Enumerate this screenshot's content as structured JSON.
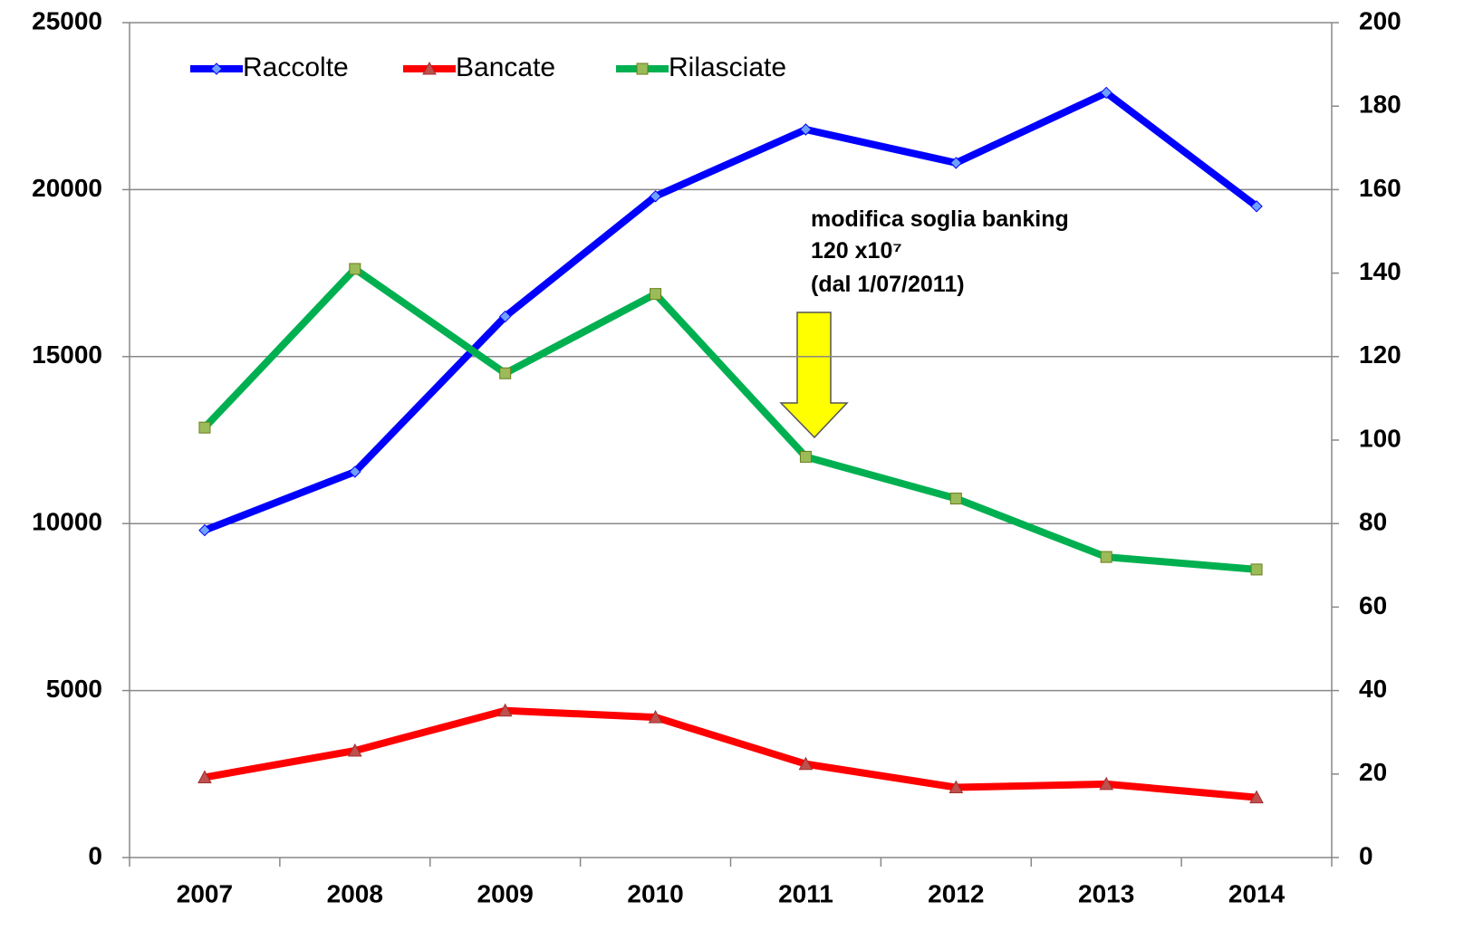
{
  "chart_data": {
    "type": "line",
    "categories": [
      "2007",
      "2008",
      "2009",
      "2010",
      "2011",
      "2012",
      "2013",
      "2014"
    ],
    "series": [
      {
        "name": "Raccolte",
        "color": "#0000ff",
        "marker": "diamond",
        "values": [
          9800,
          11550,
          16200,
          19800,
          21800,
          20800,
          22900,
          19500
        ]
      },
      {
        "name": "Bancate",
        "color": "#ff0000",
        "marker": "triangle",
        "values": [
          2400,
          3200,
          4400,
          4200,
          2800,
          2100,
          2200,
          1800
        ]
      },
      {
        "name": "Rilasciate",
        "color": "#00b050",
        "marker": "square",
        "axis": "y2",
        "values": [
          103,
          141,
          116,
          135,
          96,
          86,
          72,
          69
        ]
      }
    ],
    "ylim": [
      0,
      25000
    ],
    "yticks": [
      0,
      5000,
      10000,
      15000,
      20000,
      25000
    ],
    "y2lim": [
      0,
      200
    ],
    "y2ticks": [
      0,
      20,
      40,
      60,
      80,
      100,
      120,
      140,
      160,
      180,
      200
    ],
    "grid": true,
    "legend": "top-left",
    "annotation": [
      "modifica soglia banking",
      "120 x10⁷",
      "(dal 1/07/2011)"
    ]
  }
}
